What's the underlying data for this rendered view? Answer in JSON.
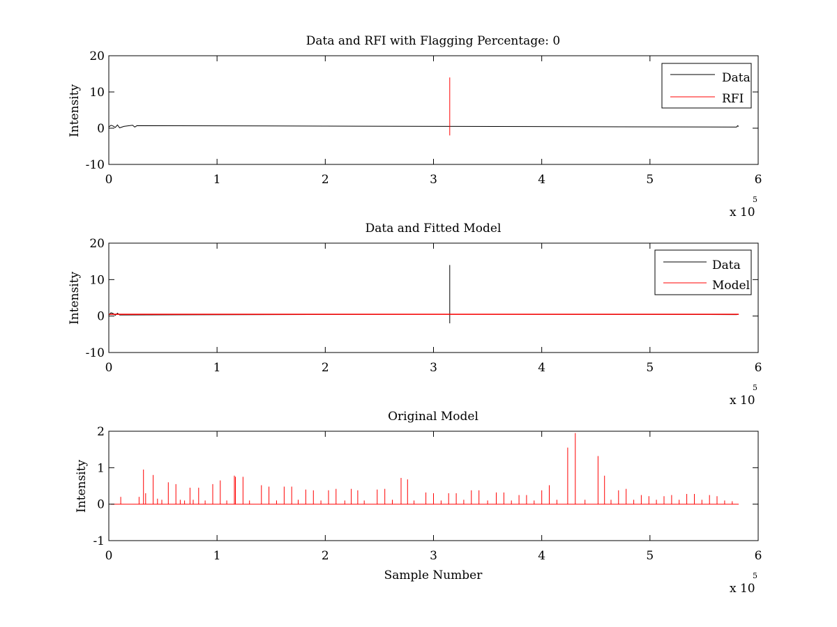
{
  "chart_data": [
    {
      "type": "line",
      "title": "Data and RFI with Flagging Percentage: 0",
      "xlabel": "",
      "ylabel": "Intensity",
      "xlim": [
        0,
        600000
      ],
      "ylim": [
        -10,
        20
      ],
      "xticks": [
        0,
        1,
        2,
        3,
        4,
        5,
        6
      ],
      "yticks": [
        -10,
        0,
        10,
        20
      ],
      "x_multiplier": "x 10",
      "x_exponent": "5",
      "legend": {
        "location": "top-right",
        "entries": [
          "Data",
          "RFI"
        ]
      },
      "grid": false,
      "series": [
        {
          "name": "Data",
          "color": "#000000",
          "baseline": 0.5,
          "x_range": [
            0,
            582000
          ],
          "points": [
            [
              0,
              0.3
            ],
            [
              2000,
              0.8
            ],
            [
              4000,
              0.6
            ],
            [
              6000,
              0.2
            ],
            [
              8000,
              0.9
            ],
            [
              10000,
              0.1
            ],
            [
              14000,
              0.5
            ],
            [
              22000,
              0.8
            ],
            [
              24000,
              0.3
            ],
            [
              26000,
              0.7
            ],
            [
              320000,
              0.5
            ],
            [
              580000,
              0.3
            ],
            [
              581000,
              0.7
            ],
            [
              582000,
              0.5
            ]
          ]
        },
        {
          "name": "RFI",
          "color": "#ff0000",
          "spikes": [
            {
              "x": 315000,
              "ymin": -2,
              "ymax": 14
            }
          ]
        }
      ]
    },
    {
      "type": "line",
      "title": "Data and Fitted Model",
      "xlabel": "",
      "ylabel": "Intensity",
      "xlim": [
        0,
        600000
      ],
      "ylim": [
        -10,
        20
      ],
      "xticks": [
        0,
        1,
        2,
        3,
        4,
        5,
        6
      ],
      "yticks": [
        -10,
        0,
        10,
        20
      ],
      "x_multiplier": "x 10",
      "x_exponent": "5",
      "legend": {
        "location": "top-right",
        "entries": [
          "Data",
          "Model"
        ]
      },
      "grid": false,
      "series": [
        {
          "name": "Data",
          "color": "#000000",
          "baseline": 0.5,
          "x_range": [
            0,
            582000
          ],
          "spikes": [
            {
              "x": 315000,
              "ymin": -2,
              "ymax": 14
            }
          ],
          "points": [
            [
              0,
              0.3
            ],
            [
              2000,
              0.9
            ],
            [
              4000,
              0.7
            ],
            [
              6000,
              0.2
            ],
            [
              8000,
              0.8
            ],
            [
              10000,
              0.3
            ],
            [
              315000,
              0.5
            ],
            [
              580000,
              0.4
            ],
            [
              582000,
              0.5
            ]
          ]
        },
        {
          "name": "Model",
          "color": "#ff0000",
          "baseline": 0.5,
          "x_range": [
            0,
            582000
          ]
        }
      ]
    },
    {
      "type": "line",
      "title": "Original Model",
      "xlabel": "Sample Number",
      "ylabel": "Intensity",
      "xlim": [
        0,
        600000
      ],
      "ylim": [
        -1,
        2
      ],
      "xticks": [
        0,
        1,
        2,
        3,
        4,
        5,
        6
      ],
      "yticks": [
        -1,
        0,
        1,
        2
      ],
      "x_multiplier": "x 10",
      "x_exponent": "5",
      "grid": false,
      "series": [
        {
          "name": "Model",
          "color": "#ff0000",
          "baseline": 0,
          "x_range": [
            2000,
            582000
          ],
          "peaks": [
            [
              11000,
              0.2
            ],
            [
              28000,
              0.2
            ],
            [
              32000,
              0.95
            ],
            [
              34000,
              0.3
            ],
            [
              41000,
              0.8
            ],
            [
              45000,
              0.15
            ],
            [
              49000,
              0.12
            ],
            [
              55000,
              0.6
            ],
            [
              62000,
              0.55
            ],
            [
              66000,
              0.12
            ],
            [
              70000,
              0.1
            ],
            [
              75000,
              0.45
            ],
            [
              78000,
              0.12
            ],
            [
              83000,
              0.45
            ],
            [
              89000,
              0.1
            ],
            [
              96000,
              0.55
            ],
            [
              103000,
              0.65
            ],
            [
              109000,
              0.1
            ],
            [
              116000,
              0.78
            ],
            [
              117000,
              0.75
            ],
            [
              124000,
              0.75
            ],
            [
              130000,
              0.1
            ],
            [
              141000,
              0.52
            ],
            [
              148000,
              0.48
            ],
            [
              155000,
              0.1
            ],
            [
              162000,
              0.48
            ],
            [
              169000,
              0.48
            ],
            [
              175000,
              0.12
            ],
            [
              182000,
              0.4
            ],
            [
              189000,
              0.38
            ],
            [
              196000,
              0.1
            ],
            [
              203000,
              0.38
            ],
            [
              210000,
              0.42
            ],
            [
              218000,
              0.1
            ],
            [
              224000,
              0.42
            ],
            [
              230000,
              0.38
            ],
            [
              236000,
              0.1
            ],
            [
              248000,
              0.4
            ],
            [
              255000,
              0.42
            ],
            [
              262000,
              0.12
            ],
            [
              270000,
              0.72
            ],
            [
              276000,
              0.68
            ],
            [
              282000,
              0.1
            ],
            [
              293000,
              0.32
            ],
            [
              300000,
              0.3
            ],
            [
              307000,
              0.1
            ],
            [
              314000,
              0.3
            ],
            [
              321000,
              0.3
            ],
            [
              328000,
              0.12
            ],
            [
              335000,
              0.38
            ],
            [
              342000,
              0.38
            ],
            [
              350000,
              0.1
            ],
            [
              358000,
              0.32
            ],
            [
              365000,
              0.32
            ],
            [
              372000,
              0.1
            ],
            [
              379000,
              0.25
            ],
            [
              386000,
              0.25
            ],
            [
              393000,
              0.1
            ],
            [
              400000,
              0.38
            ],
            [
              407000,
              0.52
            ],
            [
              414000,
              0.12
            ],
            [
              424000,
              1.55
            ],
            [
              431000,
              1.95
            ],
            [
              440000,
              0.12
            ],
            [
              452000,
              1.32
            ],
            [
              458000,
              0.78
            ],
            [
              464000,
              0.12
            ],
            [
              471000,
              0.38
            ],
            [
              478000,
              0.42
            ],
            [
              485000,
              0.12
            ],
            [
              492000,
              0.25
            ],
            [
              499000,
              0.22
            ],
            [
              506000,
              0.12
            ],
            [
              513000,
              0.22
            ],
            [
              520000,
              0.25
            ],
            [
              527000,
              0.12
            ],
            [
              534000,
              0.28
            ],
            [
              541000,
              0.28
            ],
            [
              548000,
              0.12
            ],
            [
              555000,
              0.25
            ],
            [
              562000,
              0.22
            ],
            [
              569000,
              0.1
            ],
            [
              576000,
              0.08
            ]
          ]
        }
      ]
    }
  ]
}
